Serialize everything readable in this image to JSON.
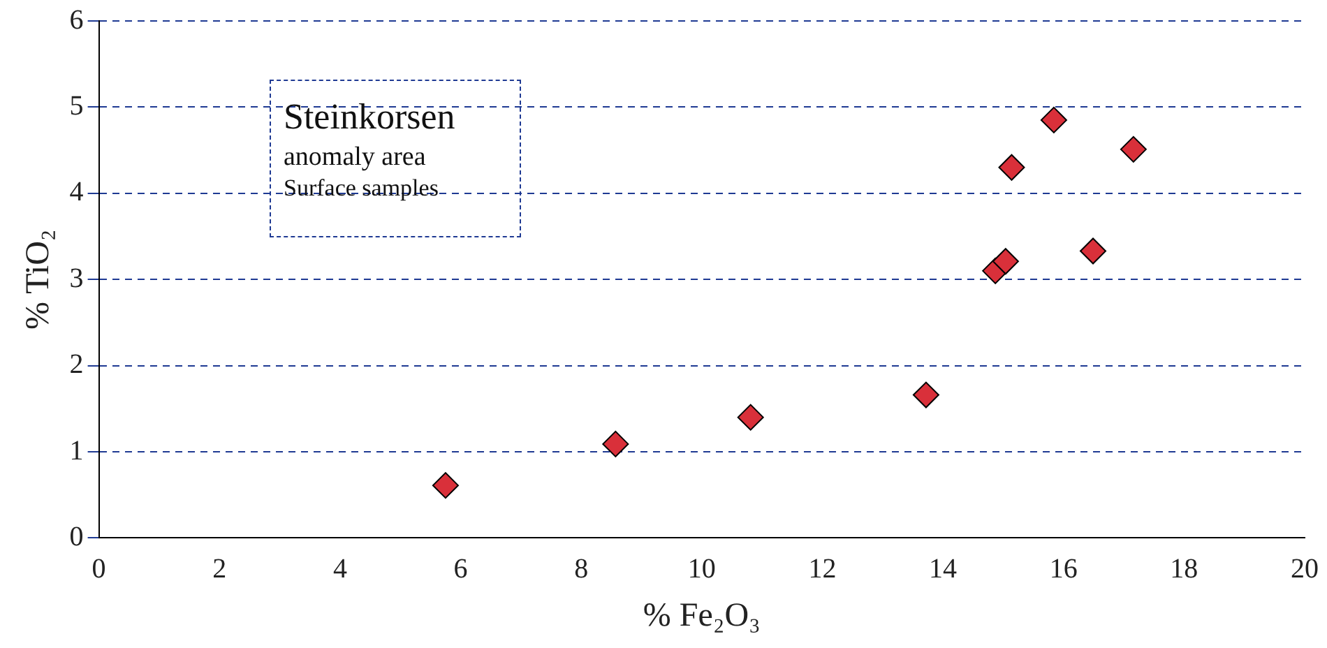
{
  "chart_data": {
    "type": "scatter",
    "xlabel": "% Fe₂O₃",
    "ylabel": "% TiO₂",
    "annotations": [
      "Steinkorsen",
      "anomaly area",
      "Surface samples"
    ],
    "x": [
      5.75,
      8.57,
      10.81,
      13.72,
      14.87,
      15.04,
      15.14,
      15.84,
      16.49,
      17.16
    ],
    "series": [
      {
        "color": "#d9303a",
        "values": [
          0.61,
          1.09,
          1.4,
          1.66,
          3.1,
          3.21,
          4.3,
          4.85,
          3.33,
          4.51
        ]
      }
    ],
    "xlim": [
      0,
      20
    ],
    "xticks": [
      0,
      2,
      4,
      6,
      8,
      10,
      12,
      14,
      16,
      18,
      20
    ],
    "ylim": [
      0,
      6
    ],
    "yticks": [
      0,
      1,
      2,
      3,
      4,
      5,
      6
    ],
    "grid": "y",
    "marker": "diamond",
    "legend": false
  }
}
